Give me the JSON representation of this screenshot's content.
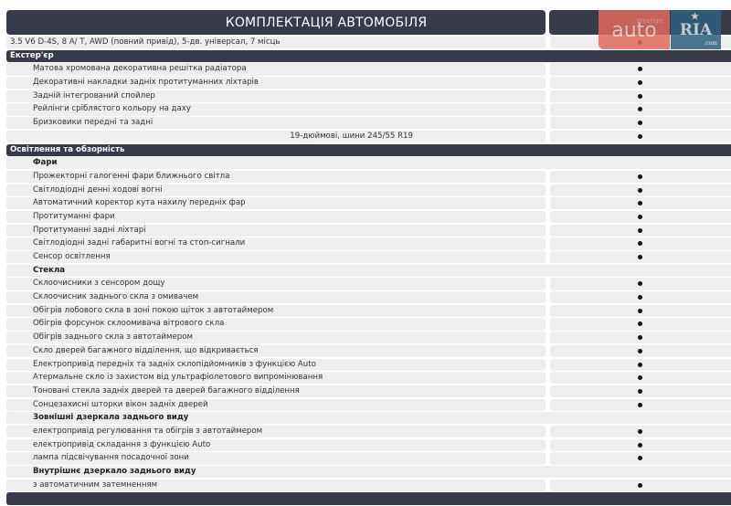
{
  "header": {
    "title": "КОМПЛЕКТАЦІЯ АВТОМОБІЛЯ"
  },
  "model": {
    "label": "3.5 V6 D-4S, 8 A/ T, AWD (повний привід), 5-дв. універсал, 7 місць",
    "included": true
  },
  "watermark": {
    "text_main": "auto",
    "text_top": "Prestige",
    "text_brand": "RIA",
    "text_domain": ".com",
    "colors": {
      "auto": "#e06a5d",
      "ria": "#2f5f7e"
    }
  },
  "colors": {
    "bar": "#373a48",
    "row": "#eeeeee",
    "mark": "#111111"
  },
  "sections": [
    {
      "title": "Екстер'єр",
      "rows": [
        {
          "type": "item",
          "label": "Матова хромована декоративна решітка радіатора",
          "included": true
        },
        {
          "type": "item",
          "label": "Декоративні накладки задніх протитуманних ліхтарів",
          "included": true
        },
        {
          "type": "item",
          "label": "Задній інтегрований спойлер",
          "included": true
        },
        {
          "type": "item",
          "label": "Рейлінги сріблястого кольору на даху",
          "included": true
        },
        {
          "type": "item",
          "label": "Бризковики передні та задні",
          "included": true
        },
        {
          "type": "value",
          "label": "19-дюймові, шини 245/55 R19",
          "included": true
        }
      ]
    },
    {
      "title": "Освітлення та обзорність",
      "rows": [
        {
          "type": "sub",
          "label": "Фари"
        },
        {
          "type": "item",
          "label": "Прожекторні галогенні фари ближнього світла",
          "included": true
        },
        {
          "type": "item",
          "label": "Світлодіодні денні ходові вогні",
          "included": true
        },
        {
          "type": "item",
          "label": "Автоматичний коректор кута нахилу передніх фар",
          "included": true
        },
        {
          "type": "item",
          "label": "Протитуманні фари",
          "included": true
        },
        {
          "type": "item",
          "label": "Протитуманні задні ліхтарі",
          "included": true
        },
        {
          "type": "item",
          "label": "Світлодіодні задні габаритні вогні та стоп-сигнали",
          "included": true
        },
        {
          "type": "item",
          "label": "Сенсор освітлення",
          "included": true
        },
        {
          "type": "sub",
          "label": "Стекла"
        },
        {
          "type": "item",
          "label": "Склоочисники з сенсором дощу",
          "included": true
        },
        {
          "type": "item",
          "label": "Склоочисник заднього скла з омивачем",
          "included": true
        },
        {
          "type": "item",
          "label": "Обігрів лобового скла в зоні покою щіток з автотаймером",
          "included": true
        },
        {
          "type": "item",
          "label": "Обігрів форсунок склоомивача вітрового скла",
          "included": true
        },
        {
          "type": "item",
          "label": "Обігрів заднього скла з автотаймером",
          "included": true
        },
        {
          "type": "item",
          "label": "Скло дверей багажного відділення, що відкривається",
          "included": true
        },
        {
          "type": "item",
          "label": "Електропривід передніх та задніх склопідйомників з функцією Auto",
          "included": true
        },
        {
          "type": "item",
          "label": "Атермальне скло із захистом від ультрафіолетового випромінювання",
          "included": true
        },
        {
          "type": "item",
          "label": "Тоновані стекла задніх дверей та дверей багажного відділення",
          "included": true
        },
        {
          "type": "item",
          "label": "Сонцезахисні шторки вікон задніх дверей",
          "included": true
        },
        {
          "type": "sub",
          "label": "Зовнішні дзеркала заднього виду"
        },
        {
          "type": "item",
          "label": "електропривід регулювання та обігрів з автотаймером",
          "included": true
        },
        {
          "type": "item",
          "label": "електропривід складання з функцією Auto",
          "included": true
        },
        {
          "type": "item",
          "label": "лампа підсвічування посадочної зони",
          "included": true
        },
        {
          "type": "sub",
          "label": "Внутрішнє дзеркало заднього виду"
        },
        {
          "type": "item",
          "label": "з автоматичним затемненням",
          "included": true
        }
      ]
    },
    {
      "title": "",
      "rows": []
    }
  ]
}
